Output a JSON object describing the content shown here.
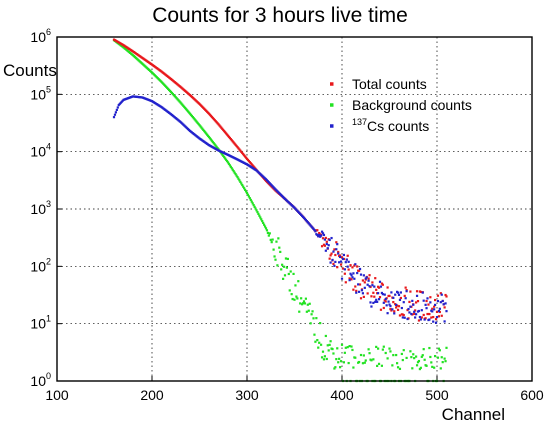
{
  "chart_data": {
    "type": "scatter",
    "title": "Counts for 3 hours live time",
    "xlabel": "Channel",
    "ylabel": "Counts",
    "xlim": [
      100,
      600
    ],
    "ylim": [
      1,
      1000000
    ],
    "yscale": "log",
    "grid": "dotted",
    "legend_position": "top-right",
    "x_ticks": [
      "100",
      "200",
      "300",
      "400",
      "500",
      "600"
    ],
    "y_ticks": [
      {
        "base": "10",
        "exp": "0",
        "value": 1
      },
      {
        "base": "10",
        "exp": "1",
        "value": 10
      },
      {
        "base": "10",
        "exp": "2",
        "value": 100
      },
      {
        "base": "10",
        "exp": "3",
        "value": 1000
      },
      {
        "base": "10",
        "exp": "4",
        "value": 10000
      },
      {
        "base": "10",
        "exp": "5",
        "value": 100000
      },
      {
        "base": "10",
        "exp": "6",
        "value": 1000000
      }
    ],
    "series": [
      {
        "legend": {
          "sup": "",
          "text": "Total counts"
        },
        "color": "#e8181c",
        "points": [
          [
            160,
            900000
          ],
          [
            170,
            720000
          ],
          [
            180,
            560000
          ],
          [
            190,
            430000
          ],
          [
            200,
            330000
          ],
          [
            210,
            250000
          ],
          [
            220,
            185000
          ],
          [
            230,
            135000
          ],
          [
            240,
            97000
          ],
          [
            250,
            68000
          ],
          [
            260,
            46000
          ],
          [
            270,
            30000
          ],
          [
            280,
            19000
          ],
          [
            290,
            12000
          ],
          [
            300,
            7500
          ],
          [
            310,
            4800
          ],
          [
            320,
            3100
          ],
          [
            330,
            2100
          ],
          [
            340,
            1500
          ],
          [
            350,
            1050
          ],
          [
            360,
            700
          ],
          [
            370,
            450
          ],
          [
            380,
            280
          ],
          [
            390,
            175
          ],
          [
            400,
            110
          ],
          [
            410,
            70
          ],
          [
            420,
            48
          ],
          [
            430,
            38
          ],
          [
            440,
            30
          ],
          [
            450,
            26
          ],
          [
            460,
            24
          ],
          [
            470,
            22
          ],
          [
            480,
            21
          ],
          [
            490,
            20
          ],
          [
            500,
            20
          ],
          [
            510,
            19
          ]
        ]
      },
      {
        "legend": {
          "sup": "",
          "text": "Background counts"
        },
        "color": "#22e222",
        "points": [
          [
            160,
            880000
          ],
          [
            170,
            660000
          ],
          [
            180,
            480000
          ],
          [
            190,
            340000
          ],
          [
            200,
            240000
          ],
          [
            210,
            165000
          ],
          [
            220,
            110000
          ],
          [
            230,
            72000
          ],
          [
            240,
            46000
          ],
          [
            250,
            29000
          ],
          [
            260,
            18000
          ],
          [
            270,
            11000
          ],
          [
            280,
            6500
          ],
          [
            290,
            3600
          ],
          [
            300,
            1900
          ],
          [
            310,
            950
          ],
          [
            320,
            460
          ],
          [
            330,
            210
          ],
          [
            340,
            95
          ],
          [
            350,
            42
          ],
          [
            360,
            20
          ],
          [
            370,
            9
          ],
          [
            380,
            4.5
          ],
          [
            390,
            3.2
          ],
          [
            400,
            2.5
          ],
          [
            410,
            2.2
          ],
          [
            420,
            2
          ],
          [
            430,
            2
          ],
          [
            440,
            2
          ],
          [
            450,
            2
          ],
          [
            460,
            2
          ],
          [
            470,
            2
          ],
          [
            480,
            2
          ],
          [
            490,
            2
          ],
          [
            500,
            2
          ],
          [
            510,
            2
          ]
        ]
      },
      {
        "legend": {
          "sup": "137",
          "text": "Cs counts"
        },
        "color": "#2222cc",
        "points": [
          [
            160,
            40000
          ],
          [
            165,
            65000
          ],
          [
            170,
            80000
          ],
          [
            180,
            92000
          ],
          [
            190,
            88000
          ],
          [
            200,
            76000
          ],
          [
            210,
            60000
          ],
          [
            220,
            45000
          ],
          [
            230,
            33000
          ],
          [
            240,
            23000
          ],
          [
            250,
            17000
          ],
          [
            260,
            13000
          ],
          [
            270,
            10500
          ],
          [
            280,
            8800
          ],
          [
            290,
            7300
          ],
          [
            300,
            6000
          ],
          [
            310,
            4700
          ],
          [
            320,
            3300
          ],
          [
            330,
            2200
          ],
          [
            340,
            1500
          ],
          [
            350,
            1050
          ],
          [
            360,
            700
          ],
          [
            370,
            450
          ],
          [
            380,
            280
          ],
          [
            390,
            175
          ],
          [
            400,
            110
          ],
          [
            410,
            70
          ],
          [
            420,
            48
          ],
          [
            430,
            36
          ],
          [
            440,
            29
          ],
          [
            450,
            25
          ],
          [
            460,
            23
          ],
          [
            470,
            21
          ],
          [
            480,
            20
          ],
          [
            490,
            20
          ],
          [
            500,
            19
          ],
          [
            510,
            19
          ]
        ]
      }
    ]
  }
}
